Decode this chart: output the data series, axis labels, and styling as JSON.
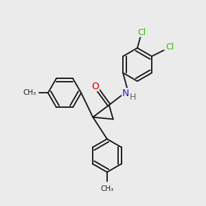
{
  "background_color": "#ebebeb",
  "bond_color": "#1a1a1a",
  "bond_width": 1.4,
  "atom_colors": {
    "O": "#e00000",
    "N": "#2020cc",
    "Cl": "#33bb00",
    "H": "#606060"
  },
  "figsize": [
    3.0,
    3.0
  ],
  "dpi": 100
}
